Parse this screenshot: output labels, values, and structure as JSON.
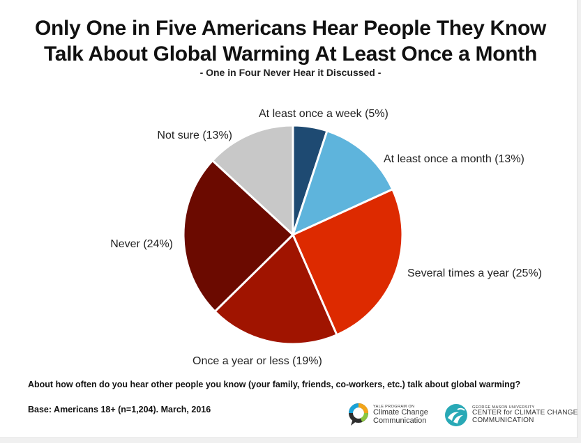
{
  "title_line1": "Only One in Five Americans Hear People They Know",
  "title_line2": "Talk About Global Warming At Least Once a Month",
  "subtitle": "- One in Four Never Hear it Discussed -",
  "question": "About how often do you hear other people you know (your family, friends, co-workers, etc.) talk about global warming?",
  "base": "Base: Americans 18+ (n=1,204). March, 2016",
  "logos": {
    "yale_small": "YALE PROGRAM ON",
    "yale_line1": "Climate Change",
    "yale_line2": "Communication",
    "gmu_small": "GEORGE MASON UNIVERSITY",
    "gmu_line1": "CENTER for CLIMATE CHANGE",
    "gmu_line2": "COMMUNICATION"
  },
  "chart_data": {
    "type": "pie",
    "start": "12 o'clock, clockwise",
    "slices": [
      {
        "label": "At least once a week (5%)",
        "value": 5,
        "color": "#1e4a72"
      },
      {
        "label": "At least once a month (13%)",
        "value": 13,
        "color": "#5eb4dc"
      },
      {
        "label": "Several times a year (25%)",
        "value": 25,
        "color": "#dd2a00"
      },
      {
        "label": "Once a year or less (19%)",
        "value": 19,
        "color": "#a01400"
      },
      {
        "label": "Never (24%)",
        "value": 24,
        "color": "#6b0a00"
      },
      {
        "label": "Not sure (13%)",
        "value": 13,
        "color": "#c8c8c8"
      }
    ]
  }
}
